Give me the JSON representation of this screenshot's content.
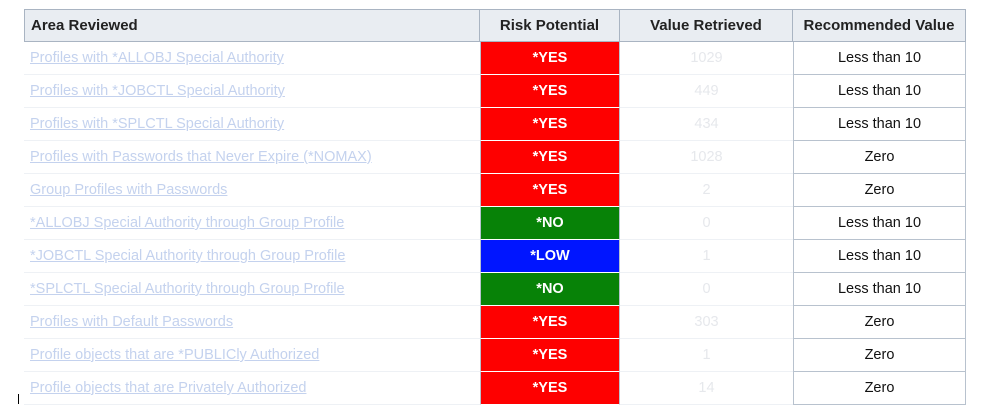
{
  "headers": {
    "area": "Area Reviewed",
    "risk": "Risk Potential",
    "value": "Value Retrieved",
    "recommended": "Recommended Value"
  },
  "rows": [
    {
      "area": "Profiles with *ALLOBJ Special Authority",
      "risk": "*YES",
      "risk_color": "#fe0000",
      "value": "1029",
      "recommended": "Less than 10"
    },
    {
      "area": "Profiles with *JOBCTL Special Authority",
      "risk": "*YES",
      "risk_color": "#fe0000",
      "value": "449",
      "recommended": "Less than 10"
    },
    {
      "area": "Profiles with *SPLCTL Special Authority",
      "risk": "*YES",
      "risk_color": "#fe0000",
      "value": "434",
      "recommended": "Less than 10"
    },
    {
      "area": "Profiles with Passwords that Never Expire (*NOMAX)",
      "risk": "*YES",
      "risk_color": "#fe0000",
      "value": "1028",
      "recommended": "Zero"
    },
    {
      "area": "Group Profiles with Passwords",
      "risk": "*YES",
      "risk_color": "#fe0000",
      "value": "2",
      "recommended": "Zero"
    },
    {
      "area": "*ALLOBJ Special Authority through Group Profile",
      "risk": "*NO",
      "risk_color": "#078207",
      "value": "0",
      "recommended": "Less than 10"
    },
    {
      "area": "*JOBCTL Special Authority through Group Profile",
      "risk": "*LOW",
      "risk_color": "#0015ff",
      "value": "1",
      "recommended": "Less than 10"
    },
    {
      "area": "*SPLCTL Special Authority through Group Profile",
      "risk": "*NO",
      "risk_color": "#078207",
      "value": "0",
      "recommended": "Less than 10"
    },
    {
      "area": "Profiles with Default Passwords",
      "risk": "*YES",
      "risk_color": "#fe0000",
      "value": "303",
      "recommended": "Zero"
    },
    {
      "area": "Profile objects that are *PUBLICly Authorized",
      "risk": "*YES",
      "risk_color": "#fe0000",
      "value": "1",
      "recommended": "Zero"
    },
    {
      "area": "Profile objects that are Privately Authorized",
      "risk": "*YES",
      "risk_color": "#fe0000",
      "value": "14",
      "recommended": "Zero"
    }
  ]
}
